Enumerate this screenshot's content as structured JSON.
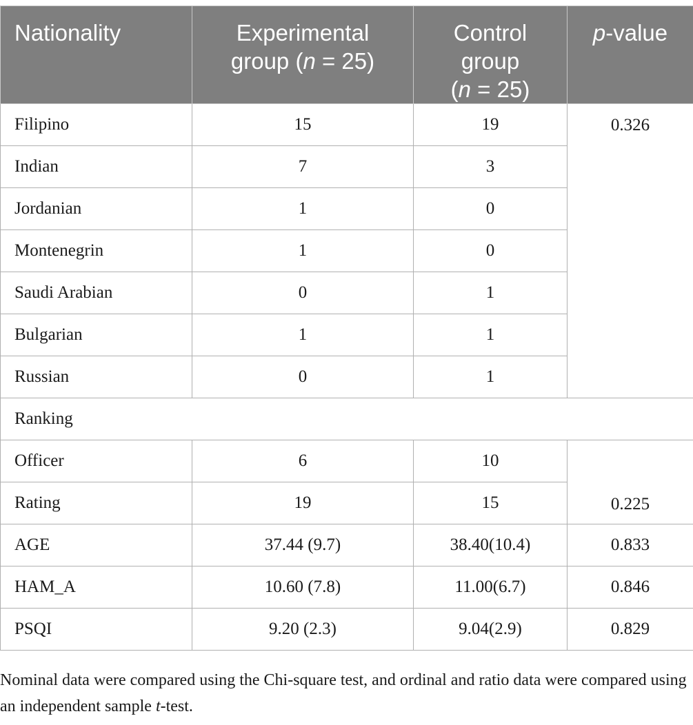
{
  "table": {
    "headers": {
      "col1": "Nationality",
      "col2_line1": "Experimental",
      "col2_line2_pre": "group (",
      "col2_n": "n",
      "col2_line2_post": " = 25)",
      "col3_line1": "Control",
      "col3_line2": "group",
      "col3_line3_pre": "(",
      "col3_n": "n",
      "col3_line3_post": " = 25)",
      "col4_p": "p",
      "col4_rest": "-value"
    },
    "nationality_rows": [
      {
        "label": "Filipino",
        "experimental": "15",
        "control": "19"
      },
      {
        "label": "Indian",
        "experimental": "7",
        "control": "3"
      },
      {
        "label": "Jordanian",
        "experimental": "1",
        "control": "0"
      },
      {
        "label": "Montenegrin",
        "experimental": "1",
        "control": "0"
      },
      {
        "label": "Saudi Arabian",
        "experimental": "0",
        "control": "1"
      },
      {
        "label": "Bulgarian",
        "experimental": "1",
        "control": "1"
      },
      {
        "label": "Russian",
        "experimental": "0",
        "control": "1"
      }
    ],
    "nationality_pvalue": "0.326",
    "ranking_label": "Ranking",
    "ranking_rows": [
      {
        "label": "Officer",
        "experimental": "6",
        "control": "10"
      },
      {
        "label": "Rating",
        "experimental": "19",
        "control": "15"
      }
    ],
    "ranking_pvalue": "0.225",
    "stat_rows": [
      {
        "label": "AGE",
        "experimental": "37.44 (9.7)",
        "control": "38.40(10.4)",
        "pvalue": "0.833"
      },
      {
        "label": "HAM_A",
        "experimental": "10.60 (7.8)",
        "control": "11.00(6.7)",
        "pvalue": "0.846"
      },
      {
        "label": "PSQI",
        "experimental": "9.20 (2.3)",
        "control": "9.04(2.9)",
        "pvalue": "0.829"
      }
    ]
  },
  "footnote": {
    "text_pre": "Nominal data were compared using the Chi-square test, and ordinal and ratio data were compared using an independent sample ",
    "t": "t",
    "text_post": "-test."
  }
}
